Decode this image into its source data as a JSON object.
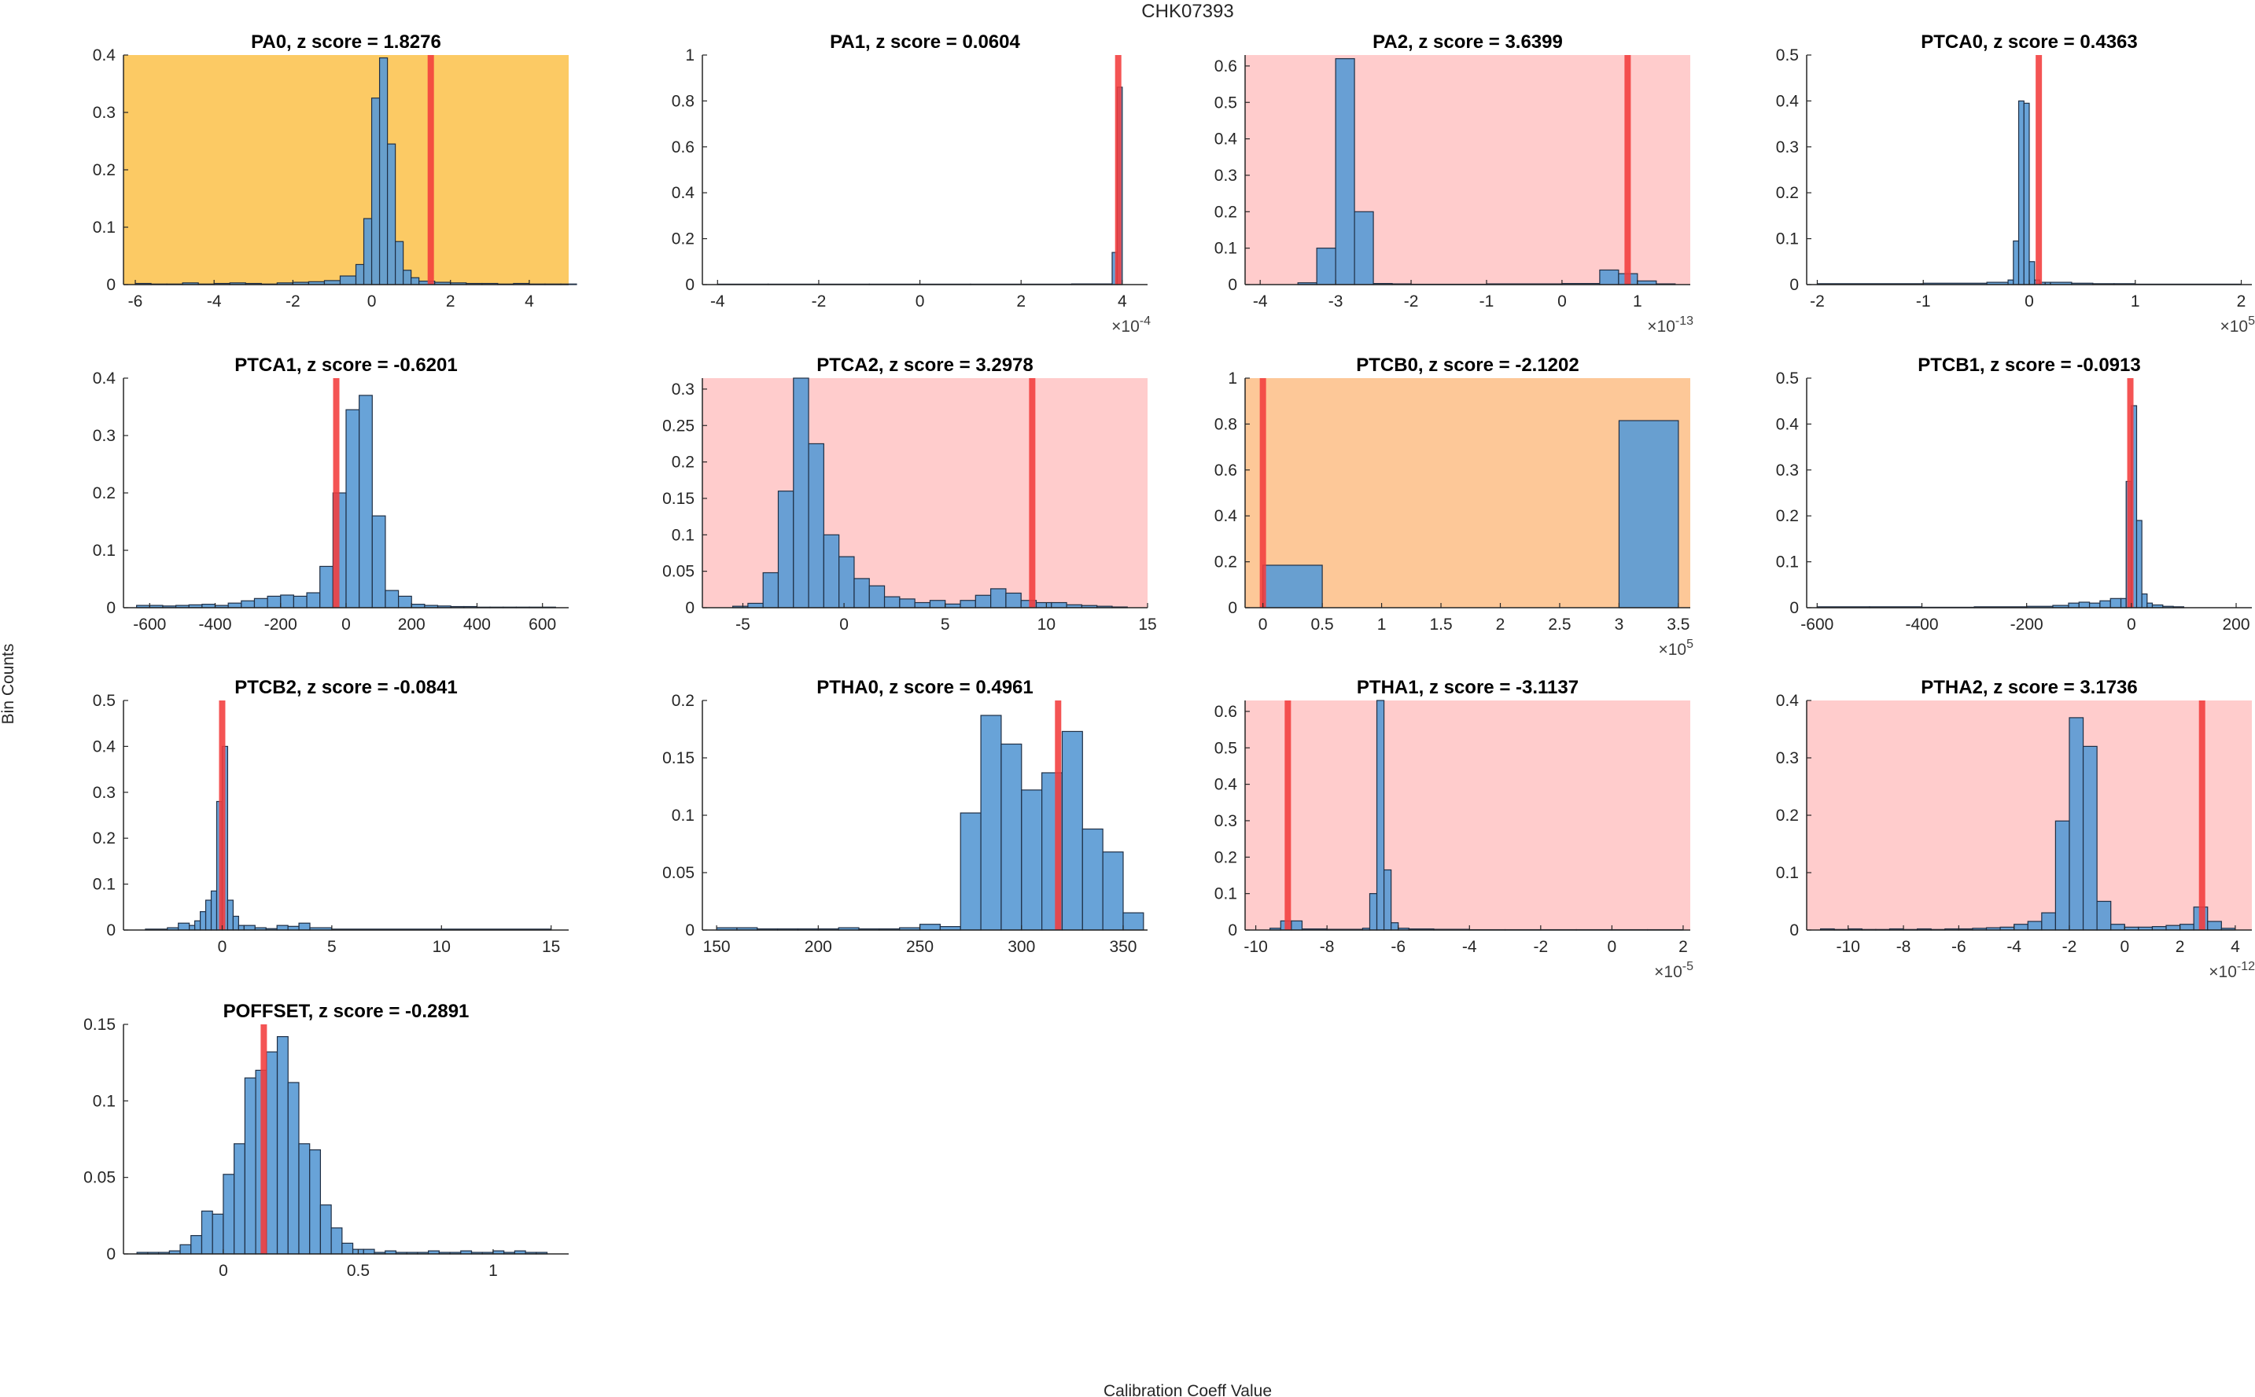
{
  "figure": {
    "title": "CHK07393",
    "xlabel": "Calibration Coeff Value",
    "ylabel": "Bin Counts"
  },
  "colors": {
    "bar": "#5b9bd5",
    "bar_edge": "#1f2f45",
    "marker": "#f23c3c",
    "bg_warning": "#fcca64",
    "bg_orange": "#fdc898",
    "bg_alert": "#ffcccc",
    "axis": "#262626"
  },
  "chart_data": [
    {
      "type": "bar",
      "name": "PA0",
      "title": "PA0, z score = 1.8276",
      "z_score": 1.8276,
      "background": "warning",
      "xlim": [
        -6.3,
        5.0
      ],
      "ylim": [
        0,
        0.4
      ],
      "xticks": [
        -6,
        -4,
        -2,
        0,
        2,
        4
      ],
      "xtick_labels": [
        "-6",
        "-4",
        "-2",
        "0",
        "2",
        "4"
      ],
      "yticks": [
        0,
        0.1,
        0.2,
        0.3,
        0.4
      ],
      "ytick_labels": [
        "0",
        "0.1",
        "0.2",
        "0.3",
        "0.4"
      ],
      "exponent": "",
      "bin_edges": [
        -6.0,
        -5.6,
        -5.2,
        -4.8,
        -4.4,
        -4.0,
        -3.6,
        -3.2,
        -2.8,
        -2.4,
        -2.0,
        -1.6,
        -1.2,
        -0.8,
        -0.4,
        -0.2,
        0.0,
        0.2,
        0.4,
        0.6,
        0.8,
        1.0,
        1.2,
        1.6,
        2.0,
        2.4,
        2.8,
        3.2,
        3.6,
        4.0,
        4.4,
        4.8,
        5.2
      ],
      "values": [
        0.002,
        0.001,
        0.001,
        0.003,
        0.001,
        0.002,
        0.003,
        0.002,
        0.001,
        0.003,
        0.004,
        0.005,
        0.007,
        0.015,
        0.035,
        0.115,
        0.325,
        0.395,
        0.245,
        0.075,
        0.025,
        0.012,
        0.006,
        0.004,
        0.003,
        0.002,
        0.002,
        0.001,
        0.002,
        0.001,
        0.001,
        0.001
      ],
      "marker_value": 1.5
    },
    {
      "type": "bar",
      "name": "PA1",
      "title": "PA1, z score = 0.0604",
      "z_score": 0.0604,
      "background": "none",
      "xlim": [
        -4.3,
        4.5
      ],
      "ylim": [
        0,
        1
      ],
      "xticks": [
        -4,
        -2,
        0,
        2,
        4
      ],
      "xtick_labels": [
        "-4",
        "-2",
        "0",
        "2",
        "4"
      ],
      "yticks": [
        0,
        0.2,
        0.4,
        0.6,
        0.8,
        1
      ],
      "ytick_labels": [
        "0",
        "0.2",
        "0.4",
        "0.6",
        "0.8",
        "1"
      ],
      "exponent": "×10^-4",
      "bin_edges": [
        -4.0,
        -3.0,
        -2.0,
        -1.0,
        0.0,
        1.0,
        2.0,
        3.0,
        3.8,
        3.9,
        4.0
      ],
      "values": [
        0.002,
        0.002,
        0.002,
        0.002,
        0.002,
        0.002,
        0.002,
        0.003,
        0.14,
        0.86
      ],
      "marker_value": 3.92
    },
    {
      "type": "bar",
      "name": "PA2",
      "title": "PA2, z score = 3.6399",
      "z_score": 3.6399,
      "background": "alert",
      "xlim": [
        -4.2,
        1.7
      ],
      "ylim": [
        0,
        0.63
      ],
      "xticks": [
        -4,
        -3,
        -2,
        -1,
        0,
        1
      ],
      "xtick_labels": [
        "-4",
        "-3",
        "-2",
        "-1",
        "0",
        "1"
      ],
      "yticks": [
        0,
        0.1,
        0.2,
        0.3,
        0.4,
        0.5,
        0.6
      ],
      "ytick_labels": [
        "0",
        "0.1",
        "0.2",
        "0.3",
        "0.4",
        "0.5",
        "0.6"
      ],
      "exponent": "×10^-13",
      "bin_edges": [
        -3.5,
        -3.25,
        -3.0,
        -2.75,
        -2.5,
        -2.25,
        -2.0,
        -1.0,
        0.0,
        0.5,
        0.75,
        1.0,
        1.25,
        1.5
      ],
      "values": [
        0.005,
        0.1,
        0.62,
        0.2,
        0.003,
        0.002,
        0.001,
        0.002,
        0.003,
        0.04,
        0.03,
        0.01,
        0.002
      ],
      "marker_value": 0.87
    },
    {
      "type": "bar",
      "name": "PTCA0",
      "title": "PTCA0, z score = 0.4363",
      "z_score": 0.4363,
      "background": "none",
      "xlim": [
        -2.1,
        2.1
      ],
      "ylim": [
        0,
        0.5
      ],
      "xticks": [
        -2,
        -1,
        0,
        1,
        2
      ],
      "xtick_labels": [
        "-2",
        "-1",
        "0",
        "1",
        "2"
      ],
      "yticks": [
        0,
        0.1,
        0.2,
        0.3,
        0.4,
        0.5
      ],
      "ytick_labels": [
        "0",
        "0.1",
        "0.2",
        "0.3",
        "0.4",
        "0.5"
      ],
      "exponent": "×10^5",
      "bin_edges": [
        -2.0,
        -1.0,
        -0.4,
        -0.2,
        -0.15,
        -0.1,
        -0.05,
        0.0,
        0.05,
        0.1,
        0.15,
        0.2,
        0.4,
        0.6,
        0.8,
        1.0,
        2.0
      ],
      "values": [
        0.002,
        0.003,
        0.005,
        0.01,
        0.095,
        0.4,
        0.395,
        0.05,
        0.01,
        0.005,
        0.005,
        0.005,
        0.003,
        0.002,
        0.002,
        0.001
      ],
      "marker_value": 0.09
    },
    {
      "type": "bar",
      "name": "PTCA1",
      "title": "PTCA1, z score = -0.6201",
      "z_score": -0.6201,
      "background": "none",
      "xlim": [
        -680,
        680
      ],
      "ylim": [
        0,
        0.4
      ],
      "xticks": [
        -600,
        -400,
        -200,
        0,
        200,
        400,
        600
      ],
      "xtick_labels": [
        "-600",
        "-400",
        "-200",
        "0",
        "200",
        "400",
        "600"
      ],
      "yticks": [
        0,
        0.1,
        0.2,
        0.3,
        0.4
      ],
      "ytick_labels": [
        "0",
        "0.1",
        "0.2",
        "0.3",
        "0.4"
      ],
      "exponent": "",
      "bin_edges": [
        -640,
        -600,
        -560,
        -520,
        -480,
        -440,
        -400,
        -360,
        -320,
        -280,
        -240,
        -200,
        -160,
        -120,
        -80,
        -40,
        0,
        40,
        80,
        120,
        160,
        200,
        240,
        280,
        320,
        360,
        400,
        440,
        480,
        520,
        560,
        600,
        640
      ],
      "values": [
        0.004,
        0.004,
        0.003,
        0.004,
        0.005,
        0.006,
        0.004,
        0.008,
        0.012,
        0.016,
        0.02,
        0.022,
        0.02,
        0.026,
        0.072,
        0.2,
        0.345,
        0.37,
        0.16,
        0.03,
        0.02,
        0.006,
        0.004,
        0.003,
        0.002,
        0.002,
        0.001,
        0.001,
        0.001,
        0.001,
        0.001,
        0.001
      ],
      "marker_value": -30
    },
    {
      "type": "bar",
      "name": "PTCA2",
      "title": "PTCA2, z score = 3.2978",
      "z_score": 3.2978,
      "background": "alert",
      "xlim": [
        -7,
        15
      ],
      "ylim": [
        0,
        0.315
      ],
      "xticks": [
        -5,
        0,
        5,
        10,
        15
      ],
      "xtick_labels": [
        "-5",
        "0",
        "5",
        "10",
        "15"
      ],
      "yticks": [
        0,
        0.05,
        0.1,
        0.15,
        0.2,
        0.25,
        0.3
      ],
      "ytick_labels": [
        "0",
        "0.05",
        "0.1",
        "0.15",
        "0.2",
        "0.25",
        "0.3"
      ],
      "exponent": "",
      "bin_edges": [
        -5.5,
        -4.75,
        -4.0,
        -3.25,
        -2.5,
        -1.75,
        -1.0,
        -0.25,
        0.5,
        1.25,
        2.0,
        2.75,
        3.5,
        4.25,
        5.0,
        5.75,
        6.5,
        7.25,
        8.0,
        8.75,
        9.5,
        10.25,
        11.0,
        11.75,
        12.5,
        13.25,
        14.0
      ],
      "values": [
        0.002,
        0.006,
        0.048,
        0.16,
        0.315,
        0.225,
        0.1,
        0.07,
        0.04,
        0.03,
        0.015,
        0.012,
        0.007,
        0.01,
        0.005,
        0.01,
        0.017,
        0.026,
        0.02,
        0.01,
        0.007,
        0.007,
        0.004,
        0.003,
        0.002,
        0.001
      ],
      "marker_value": 9.3
    },
    {
      "type": "bar",
      "name": "PTCB0",
      "title": "PTCB0, z score = -2.1202",
      "z_score": -2.1202,
      "background": "orange",
      "xlim": [
        -0.15,
        3.6
      ],
      "ylim": [
        0,
        1
      ],
      "xticks": [
        0,
        0.5,
        1,
        1.5,
        2,
        2.5,
        3,
        3.5
      ],
      "xtick_labels": [
        "0",
        "0.5",
        "1",
        "1.5",
        "2",
        "2.5",
        "3",
        "3.5"
      ],
      "yticks": [
        0,
        0.2,
        0.4,
        0.6,
        0.8,
        1
      ],
      "ytick_labels": [
        "0",
        "0.2",
        "0.4",
        "0.6",
        "0.8",
        "1"
      ],
      "exponent": "×10^5",
      "bin_edges": [
        0.0,
        0.5,
        1.0,
        1.5,
        2.0,
        2.5,
        3.0,
        3.5
      ],
      "values": [
        0.185,
        0.0,
        0.0,
        0.0,
        0.0,
        0.0,
        0.815
      ],
      "marker_value": 0.0
    },
    {
      "type": "bar",
      "name": "PTCB1",
      "title": "PTCB1, z score = -0.0913",
      "z_score": -0.0913,
      "background": "none",
      "xlim": [
        -620,
        230
      ],
      "ylim": [
        0,
        0.5
      ],
      "xticks": [
        -600,
        -400,
        -200,
        0,
        200
      ],
      "xtick_labels": [
        "-600",
        "-400",
        "-200",
        "0",
        "200"
      ],
      "yticks": [
        0,
        0.1,
        0.2,
        0.3,
        0.4,
        0.5
      ],
      "ytick_labels": [
        "0",
        "0.1",
        "0.2",
        "0.3",
        "0.4",
        "0.5"
      ],
      "exponent": "",
      "bin_edges": [
        -600,
        -500,
        -400,
        -300,
        -200,
        -150,
        -120,
        -100,
        -80,
        -60,
        -40,
        -20,
        -10,
        0,
        10,
        20,
        30,
        40,
        60,
        80,
        100
      ],
      "values": [
        0.002,
        0.002,
        0.001,
        0.002,
        0.003,
        0.005,
        0.01,
        0.012,
        0.01,
        0.015,
        0.02,
        0.02,
        0.275,
        0.44,
        0.19,
        0.03,
        0.01,
        0.006,
        0.003,
        0.002
      ],
      "marker_value": -2
    },
    {
      "type": "bar",
      "name": "PTCB2",
      "title": "PTCB2, z score = -0.0841",
      "z_score": -0.0841,
      "background": "none",
      "xlim": [
        -4.5,
        15.8
      ],
      "ylim": [
        0,
        0.5
      ],
      "xticks": [
        0,
        5,
        10,
        15
      ],
      "xtick_labels": [
        "0",
        "5",
        "10",
        "15"
      ],
      "yticks": [
        0,
        0.1,
        0.2,
        0.3,
        0.4,
        0.5
      ],
      "ytick_labels": [
        "0",
        "0.1",
        "0.2",
        "0.3",
        "0.4",
        "0.5"
      ],
      "exponent": "",
      "bin_edges": [
        -3.5,
        -2.5,
        -2.0,
        -1.5,
        -1.25,
        -1.0,
        -0.75,
        -0.5,
        -0.25,
        0.0,
        0.25,
        0.5,
        0.75,
        1.0,
        1.5,
        2.0,
        2.5,
        3.0,
        3.5,
        4.0,
        5.0,
        15.0
      ],
      "values": [
        0.002,
        0.005,
        0.015,
        0.01,
        0.02,
        0.04,
        0.065,
        0.085,
        0.28,
        0.4,
        0.065,
        0.03,
        0.01,
        0.01,
        0.005,
        0.003,
        0.01,
        0.008,
        0.015,
        0.005,
        0.002
      ],
      "marker_value": 0.0
    },
    {
      "type": "bar",
      "name": "PTHA0",
      "title": "PTHA0, z score = 0.4961",
      "z_score": 0.4961,
      "background": "none",
      "xlim": [
        143,
        362
      ],
      "ylim": [
        0,
        0.2
      ],
      "xticks": [
        150,
        200,
        250,
        300,
        350
      ],
      "xtick_labels": [
        "150",
        "200",
        "250",
        "300",
        "350"
      ],
      "yticks": [
        0,
        0.05,
        0.1,
        0.15,
        0.2
      ],
      "ytick_labels": [
        "0",
        "0.05",
        "0.1",
        "0.15",
        "0.2"
      ],
      "exponent": "",
      "bin_edges": [
        150,
        160,
        170,
        180,
        190,
        200,
        210,
        220,
        230,
        240,
        250,
        260,
        270,
        280,
        290,
        300,
        310,
        320,
        330,
        340,
        350,
        360
      ],
      "values": [
        0.002,
        0.002,
        0.001,
        0.001,
        0.001,
        0.001,
        0.002,
        0.001,
        0.001,
        0.002,
        0.005,
        0.003,
        0.102,
        0.187,
        0.162,
        0.122,
        0.137,
        0.173,
        0.088,
        0.068,
        0.015
      ],
      "marker_value": 318
    },
    {
      "type": "bar",
      "name": "PTHA1",
      "title": "PTHA1, z score = -3.1137",
      "z_score": -3.1137,
      "background": "alert",
      "xlim": [
        -10.3,
        2.2
      ],
      "ylim": [
        0,
        0.63
      ],
      "xticks": [
        -10,
        -8,
        -6,
        -4,
        -2,
        0,
        2
      ],
      "xtick_labels": [
        "-10",
        "-8",
        "-6",
        "-4",
        "-2",
        "0",
        "2"
      ],
      "yticks": [
        0,
        0.1,
        0.2,
        0.3,
        0.4,
        0.5,
        0.6
      ],
      "ytick_labels": [
        "0",
        "0.1",
        "0.2",
        "0.3",
        "0.4",
        "0.5",
        "0.6"
      ],
      "exponent": "×10^-5",
      "bin_edges": [
        -9.6,
        -9.3,
        -9.0,
        -8.7,
        -8.0,
        -7.0,
        -6.8,
        -6.6,
        -6.4,
        -6.2,
        -6.0,
        -5.7,
        -5.0,
        -4.0,
        -3.0,
        -2.0,
        -1.0,
        0.0,
        1.0,
        2.0
      ],
      "values": [
        0.005,
        0.025,
        0.025,
        0.003,
        0.002,
        0.005,
        0.1,
        0.63,
        0.165,
        0.02,
        0.005,
        0.003,
        0.002,
        0.001,
        0.001,
        0.001,
        0.001,
        0.001,
        0.001
      ],
      "marker_value": -9.1
    },
    {
      "type": "bar",
      "name": "PTHA2",
      "title": "PTHA2, z score = 3.1736",
      "z_score": 3.1736,
      "background": "alert",
      "xlim": [
        -11.5,
        4.6
      ],
      "ylim": [
        0,
        0.4
      ],
      "xticks": [
        -10,
        -8,
        -6,
        -4,
        -2,
        0,
        2,
        4
      ],
      "xtick_labels": [
        "-10",
        "-8",
        "-6",
        "-4",
        "-2",
        "0",
        "2",
        "4"
      ],
      "yticks": [
        0,
        0.1,
        0.2,
        0.3,
        0.4
      ],
      "ytick_labels": [
        "0",
        "0.1",
        "0.2",
        "0.3",
        "0.4"
      ],
      "exponent": "×10^-12",
      "bin_edges": [
        -11.0,
        -10.5,
        -10.0,
        -9.5,
        -9.0,
        -8.5,
        -8.0,
        -7.5,
        -7.0,
        -6.5,
        -6.0,
        -5.5,
        -5.0,
        -4.5,
        -4.0,
        -3.5,
        -3.0,
        -2.5,
        -2.0,
        -1.5,
        -1.0,
        -0.5,
        0.0,
        0.5,
        1.0,
        1.5,
        2.0,
        2.5,
        3.0,
        3.5,
        4.0
      ],
      "values": [
        0.002,
        0.001,
        0.002,
        0.001,
        0.001,
        0.002,
        0.001,
        0.002,
        0.001,
        0.002,
        0.002,
        0.003,
        0.004,
        0.005,
        0.01,
        0.015,
        0.03,
        0.19,
        0.37,
        0.32,
        0.05,
        0.01,
        0.005,
        0.005,
        0.006,
        0.008,
        0.01,
        0.04,
        0.015,
        0.003
      ],
      "marker_value": 2.8
    },
    {
      "type": "bar",
      "name": "POFFSET",
      "title": "POFFSET, z score = -0.2891",
      "z_score": -0.2891,
      "background": "none",
      "xlim": [
        -0.37,
        1.28
      ],
      "ylim": [
        0,
        0.15
      ],
      "xticks": [
        0,
        0.5,
        1
      ],
      "xtick_labels": [
        "0",
        "0.5",
        "1"
      ],
      "yticks": [
        0,
        0.05,
        0.1,
        0.15
      ],
      "ytick_labels": [
        "0",
        "0.05",
        "0.1",
        "0.15"
      ],
      "exponent": "",
      "bin_edges": [
        -0.32,
        -0.28,
        -0.24,
        -0.2,
        -0.16,
        -0.12,
        -0.08,
        -0.04,
        0.0,
        0.04,
        0.08,
        0.12,
        0.16,
        0.2,
        0.24,
        0.28,
        0.32,
        0.36,
        0.4,
        0.44,
        0.48,
        0.52,
        0.56,
        0.6,
        0.64,
        0.68,
        0.72,
        0.76,
        0.8,
        0.84,
        0.88,
        0.92,
        0.96,
        1.0,
        1.04,
        1.08,
        1.12,
        1.16,
        1.2
      ],
      "values": [
        0.001,
        0.001,
        0.001,
        0.002,
        0.006,
        0.012,
        0.028,
        0.026,
        0.052,
        0.072,
        0.115,
        0.12,
        0.132,
        0.142,
        0.112,
        0.072,
        0.068,
        0.032,
        0.017,
        0.007,
        0.003,
        0.003,
        0.001,
        0.002,
        0.001,
        0.001,
        0.001,
        0.002,
        0.001,
        0.001,
        0.002,
        0.001,
        0.001,
        0.002,
        0.001,
        0.002,
        0.001,
        0.001
      ],
      "marker_value": 0.15
    }
  ]
}
